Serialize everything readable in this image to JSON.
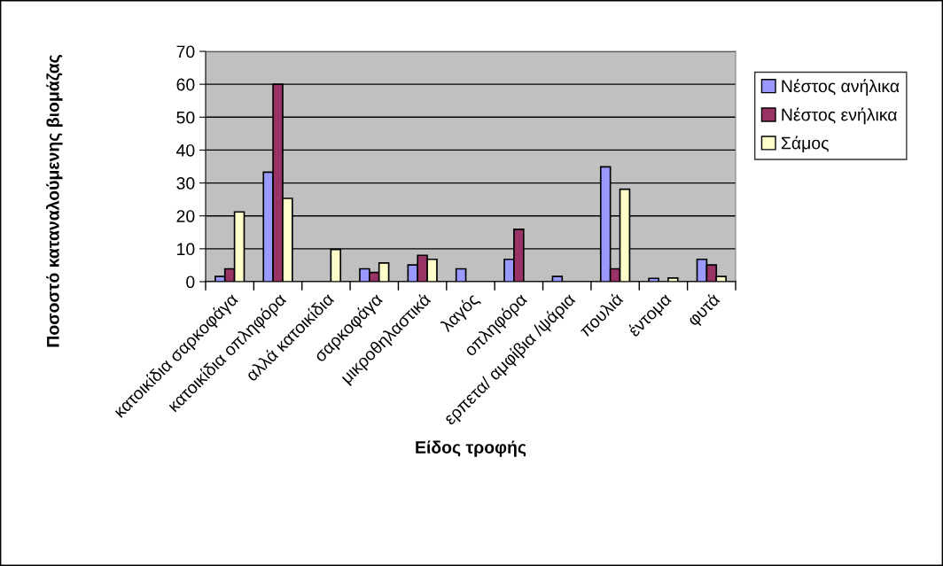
{
  "chart_data": {
    "type": "bar",
    "xlabel": "Είδος τροφής",
    "ylabel": "Ποσοστό καταναλούμενης βιομάζας",
    "categories": [
      "κατοικίδια σαρκοφάγα",
      "κατοικίδια οπληφόρα",
      "αλλά κατοικίδια",
      "σαρκοφάγα",
      "μικροθηλαστικά",
      "λαγός",
      "οπληφόρα",
      "ερπετα/ αμφίβια /ψάρια",
      "πουλιά",
      "έντομα",
      "φυτά"
    ],
    "series": [
      {
        "name": "Νέστος ανήλικα",
        "color": "#9999ff",
        "values": [
          1.6,
          33.3,
          null,
          3.9,
          5.1,
          3.9,
          6.8,
          1.6,
          34.9,
          1.0,
          6.8
        ]
      },
      {
        "name": "Νέστος ενήλικα",
        "color": "#993366",
        "values": [
          3.9,
          60,
          null,
          2.8,
          8.0,
          null,
          15.9,
          null,
          3.9,
          null,
          5.1
        ]
      },
      {
        "name": "Σάμος",
        "color": "#ffffcc",
        "values": [
          21.2,
          25.3,
          9.8,
          5.7,
          6.8,
          null,
          null,
          null,
          28.1,
          1.1,
          1.6
        ]
      }
    ],
    "ylim": [
      0,
      70
    ],
    "yticks": [
      0,
      10,
      20,
      30,
      40,
      50,
      60,
      70
    ],
    "grid": "y",
    "legend": "right"
  }
}
